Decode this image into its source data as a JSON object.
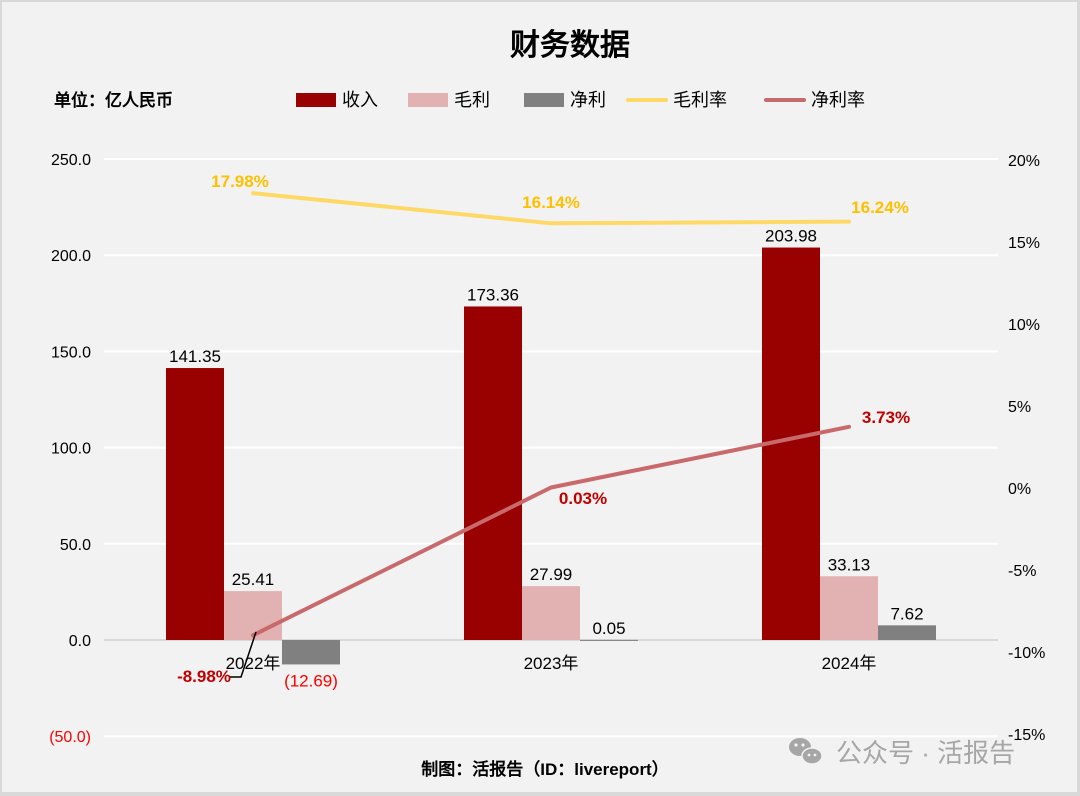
{
  "header": {
    "title": "财务数据",
    "unit_label": "单位：亿人民币"
  },
  "legend": [
    {
      "label": "收入",
      "type": "bar",
      "color": "#990000"
    },
    {
      "label": "毛利",
      "type": "bar",
      "color": "#e2b1b1"
    },
    {
      "label": "净利",
      "type": "bar",
      "color": "#808080"
    },
    {
      "label": "毛利率",
      "type": "line",
      "color": "#ffd966"
    },
    {
      "label": "净利率",
      "type": "line",
      "color": "#c8696b"
    }
  ],
  "footer": {
    "credit": "制图：活报告（ID：livereport）",
    "watermark": "公众号 · 活报告"
  },
  "colors": {
    "revenue": "#990000",
    "gross_profit": "#e2b1b1",
    "net_profit": "#808080",
    "gross_margin": "#ffd966",
    "net_margin": "#c8696b",
    "gross_margin_label": "#ffc000",
    "net_margin_label": "#c00000",
    "negative_value": "#ff0000",
    "background": "#f2f2f2",
    "gridline": "#ffffff",
    "zero_line": "#d9d9d9"
  },
  "chart_data": {
    "type": "bar",
    "title": "财务数据",
    "xlabel": "",
    "ylabel": "单位：亿人民币",
    "categories": [
      "2022年",
      "2023年",
      "2024年"
    ],
    "series": [
      {
        "name": "收入",
        "type": "bar",
        "axis": "left",
        "values": [
          141.35,
          173.36,
          203.98
        ],
        "labels": [
          "141.35",
          "173.36",
          "203.98"
        ]
      },
      {
        "name": "毛利",
        "type": "bar",
        "axis": "left",
        "values": [
          25.41,
          27.99,
          33.13
        ],
        "labels": [
          "25.41",
          "27.99",
          "33.13"
        ]
      },
      {
        "name": "净利",
        "type": "bar",
        "axis": "left",
        "values": [
          -12.69,
          0.05,
          7.62
        ],
        "labels": [
          "(12.69)",
          "0.05",
          "7.62"
        ]
      },
      {
        "name": "毛利率",
        "type": "line",
        "axis": "right",
        "values": [
          17.98,
          16.14,
          16.24
        ],
        "labels": [
          "17.98%",
          "16.14%",
          "16.24%"
        ]
      },
      {
        "name": "净利率",
        "type": "line",
        "axis": "right",
        "values": [
          -8.98,
          0.03,
          3.73
        ],
        "labels": [
          "-8.98%",
          "0.03%",
          "3.73%"
        ]
      }
    ],
    "left_axis": {
      "ylim": [
        -50,
        250
      ],
      "ticks": [
        250,
        200,
        150,
        100,
        50,
        0,
        -50
      ],
      "tick_labels": [
        "250.0",
        "200.0",
        "150.0",
        "100.0",
        "50.0",
        "0.0",
        "(50.0)"
      ]
    },
    "right_axis": {
      "ylim": [
        -15,
        20
      ],
      "ticks": [
        20,
        15,
        10,
        5,
        0,
        -5,
        -10,
        -15
      ],
      "tick_labels": [
        "20%",
        "15%",
        "10%",
        "5%",
        "0%",
        "-5%",
        "-10%",
        "-15%"
      ]
    },
    "grid": true,
    "legend_position": "top"
  }
}
